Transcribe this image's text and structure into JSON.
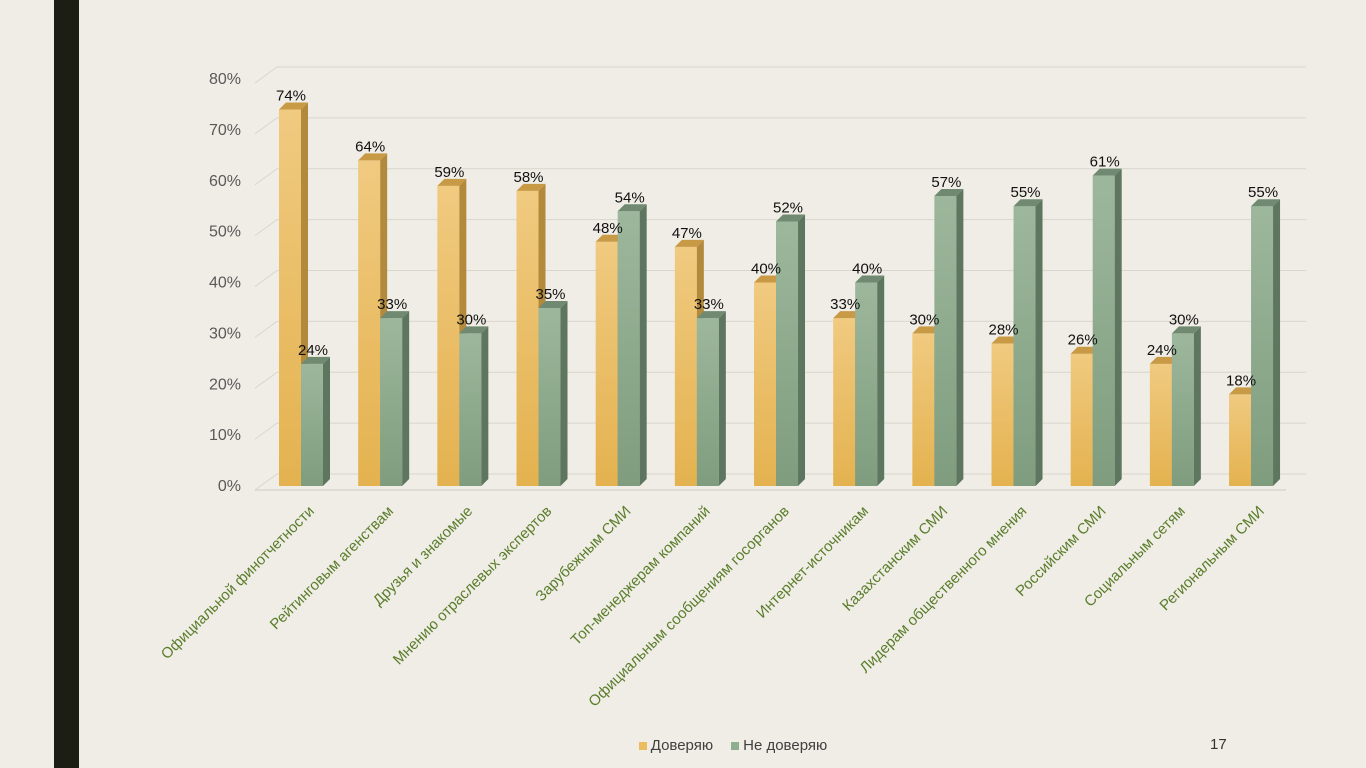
{
  "slide": {
    "page_number": "17"
  },
  "colors": {
    "trust": "#ecbd5f",
    "trust_side": "#b38a3c",
    "trust_top": "#c89a45",
    "distrust": "#8fae8e",
    "distrust_side": "#5e7660",
    "distrust_top": "#6f8a70",
    "category_label": "#5a7d2b"
  },
  "chart_data": {
    "type": "bar",
    "title": "",
    "xlabel": "",
    "ylabel": "",
    "ylim": [
      0,
      80
    ],
    "yticks": [
      "0%",
      "10%",
      "20%",
      "30%",
      "40%",
      "50%",
      "60%",
      "70%",
      "80%"
    ],
    "grid": true,
    "legend_position": "bottom",
    "categories": [
      "Официальной финотчетности",
      "Рейтинговым агенствам",
      "Друзья и знакомые",
      "Мнению отраслевых экспертов",
      "Зарубежным СМИ",
      "Топ-менеджерам компаний",
      "Официальным сообщениям госорганов",
      "Интернет-источникам",
      "Казахстанским СМИ",
      "Лидерам общественного мнения",
      "Российским СМИ",
      "Социальным сетям",
      "Региональным СМИ"
    ],
    "series": [
      {
        "name": "Доверяю",
        "values": [
          74,
          64,
          59,
          58,
          48,
          47,
          40,
          33,
          30,
          28,
          26,
          24,
          18
        ],
        "labels": [
          "74%",
          "64%",
          "59%",
          "58%",
          "48%",
          "47%",
          "40%",
          "33%",
          "30%",
          "28%",
          "26%",
          "24%",
          "18%"
        ]
      },
      {
        "name": "Не доверяю",
        "values": [
          24,
          33,
          30,
          35,
          54,
          33,
          52,
          40,
          57,
          55,
          61,
          30,
          55
        ],
        "labels": [
          "24%",
          "33%",
          "30%",
          "35%",
          "54%",
          "33%",
          "52%",
          "40%",
          "57%",
          "55%",
          "61%",
          "30%",
          "55%"
        ]
      }
    ]
  }
}
